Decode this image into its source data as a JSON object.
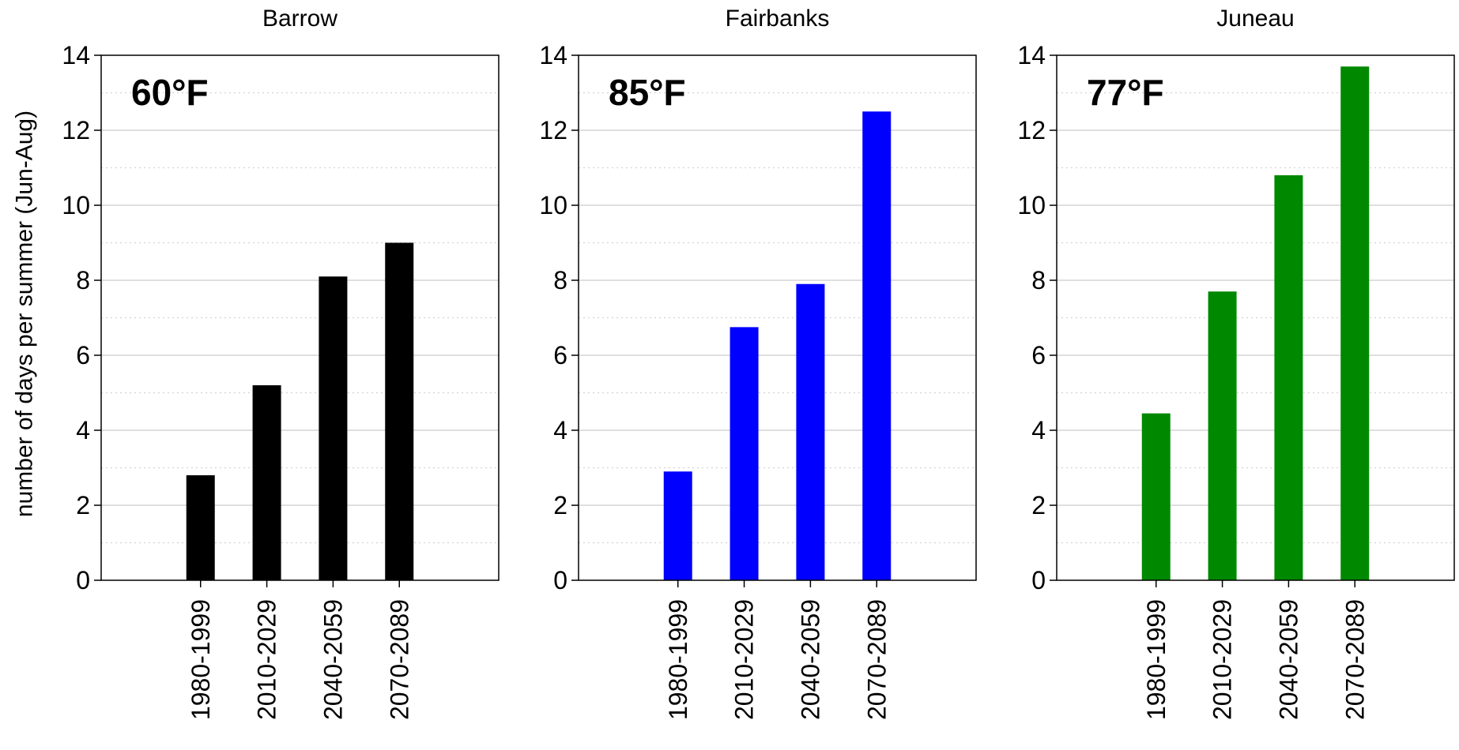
{
  "chart_data": [
    {
      "type": "bar",
      "title": "Barrow",
      "annotation": "60°F",
      "ylabel": "number of days per summer (Jun-Aug)",
      "xlabel": "",
      "categories": [
        "1980-1999",
        "2010-2029",
        "2040-2059",
        "2070-2089"
      ],
      "values": [
        2.8,
        5.2,
        8.1,
        9.0
      ],
      "color": "#000000",
      "ylim": [
        0,
        14
      ],
      "yticks": [
        0,
        2,
        4,
        6,
        8,
        10,
        12,
        14
      ],
      "grid": true
    },
    {
      "type": "bar",
      "title": "Fairbanks",
      "annotation": "85°F",
      "ylabel": "",
      "xlabel": "",
      "categories": [
        "1980-1999",
        "2010-2029",
        "2040-2059",
        "2070-2089"
      ],
      "values": [
        2.9,
        6.75,
        7.9,
        12.5
      ],
      "color": "#0000ff",
      "ylim": [
        0,
        14
      ],
      "yticks": [
        0,
        2,
        4,
        6,
        8,
        10,
        12,
        14
      ],
      "grid": true
    },
    {
      "type": "bar",
      "title": "Juneau",
      "annotation": "77°F",
      "ylabel": "",
      "xlabel": "",
      "categories": [
        "1980-1999",
        "2010-2029",
        "2040-2059",
        "2070-2089"
      ],
      "values": [
        4.45,
        7.7,
        10.8,
        13.7
      ],
      "color": "#008800",
      "ylim": [
        0,
        14
      ],
      "yticks": [
        0,
        2,
        4,
        6,
        8,
        10,
        12,
        14
      ],
      "grid": true
    }
  ]
}
